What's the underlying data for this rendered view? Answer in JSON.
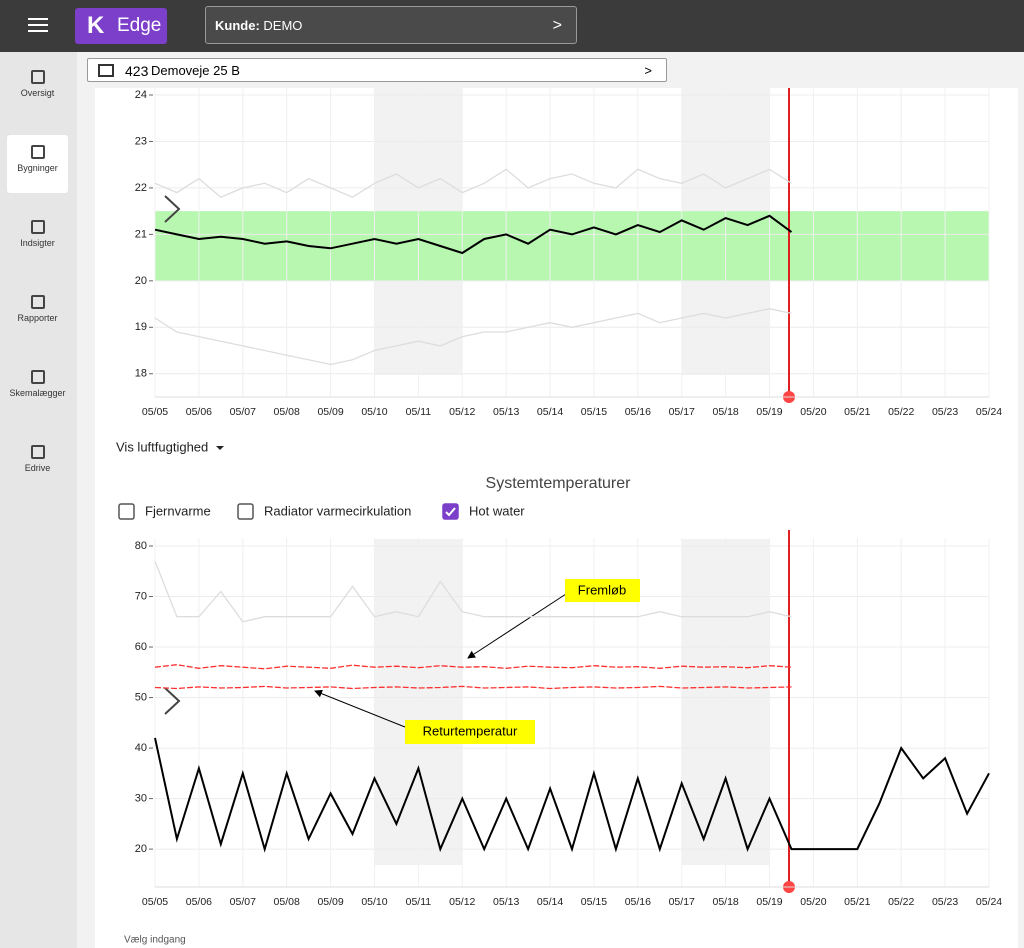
{
  "header": {
    "logo": "Edge",
    "customer_label": "Kunde:",
    "customer": "DEMO"
  },
  "sidebar": [
    "Oversigt",
    "Bygninger",
    "Indsigter",
    "Rapporter",
    "Skemalægger",
    "Edrive"
  ],
  "building": {
    "number": "423",
    "name": "Demoveje 25 B"
  },
  "humidity_toggle": "Vis luftfugtighed",
  "system_title": "Systemtemperaturer",
  "checkboxes": [
    {
      "label": "Fjernvarme",
      "checked": false
    },
    {
      "label": "Radiator varmecirkulation",
      "checked": false
    },
    {
      "label": "Hot water",
      "checked": true
    }
  ],
  "footer": "Vælg indgang",
  "chart_data": [
    {
      "type": "line",
      "categories": [
        "05/05",
        null,
        "05/06",
        null,
        "05/07",
        null,
        "05/08",
        null,
        "05/09",
        null,
        "05/10",
        null,
        "05/11",
        null,
        "05/12",
        null,
        "05/13",
        null,
        "05/14",
        null,
        "05/15",
        null,
        "05/16",
        null,
        "05/17",
        null,
        "05/18",
        null,
        "05/19",
        null,
        "05/20",
        null,
        "05/21",
        null,
        "05/22",
        null,
        "05/23",
        null,
        "05/24"
      ],
      "ylim": [
        17.5,
        24
      ],
      "yticks": [
        18,
        19,
        20,
        21,
        22,
        23,
        24
      ],
      "grid": true,
      "band": {
        "range": [
          20,
          21.5
        ],
        "color": "#b8f7b0"
      },
      "shaded": [
        [
          "05/10",
          "05/12"
        ],
        [
          "05/17",
          "05/19"
        ]
      ],
      "series": [
        {
          "color": "#dddddd",
          "values": [
            22.1,
            21.9,
            22.2,
            21.8,
            22.0,
            22.1,
            21.9,
            22.2,
            22.0,
            21.8,
            22.1,
            22.3,
            22.0,
            22.2,
            21.9,
            22.1,
            22.4,
            22.0,
            22.2,
            22.3,
            22.1,
            22.0,
            22.4,
            22.2,
            22.1,
            22.3,
            22.0,
            22.2,
            22.4,
            22.1,
            null,
            null,
            null,
            null,
            null,
            null,
            null,
            null,
            null
          ]
        },
        {
          "color": "#dddddd",
          "values": [
            19.2,
            18.9,
            18.8,
            18.7,
            18.6,
            18.5,
            18.4,
            18.3,
            18.2,
            18.3,
            18.5,
            18.6,
            18.7,
            18.6,
            18.8,
            18.9,
            18.9,
            19.0,
            19.1,
            19.0,
            19.1,
            19.2,
            19.3,
            19.1,
            19.2,
            19.3,
            19.2,
            19.3,
            19.4,
            19.3,
            null,
            null,
            null,
            null,
            null,
            null,
            null,
            null,
            null
          ]
        },
        {
          "color": "#000000",
          "values": [
            21.1,
            21.0,
            20.9,
            20.95,
            20.9,
            20.8,
            20.85,
            20.75,
            20.7,
            20.8,
            20.9,
            20.8,
            20.9,
            20.75,
            20.6,
            20.9,
            21.0,
            20.8,
            21.1,
            21.0,
            21.15,
            21.0,
            21.2,
            21.05,
            21.3,
            21.1,
            21.35,
            21.2,
            21.4,
            21.05,
            null,
            null,
            null,
            null,
            null,
            null,
            null,
            null,
            null
          ]
        }
      ]
    },
    {
      "type": "line",
      "categories": [
        "05/05",
        null,
        "05/06",
        null,
        "05/07",
        null,
        "05/08",
        null,
        "05/09",
        null,
        "05/10",
        null,
        "05/11",
        null,
        "05/12",
        null,
        "05/13",
        null,
        "05/14",
        null,
        "05/15",
        null,
        "05/16",
        null,
        "05/17",
        null,
        "05/18",
        null,
        "05/19",
        null,
        "05/20",
        null,
        "05/21",
        null,
        "05/22",
        null,
        "05/23",
        null,
        "05/24"
      ],
      "ylim": [
        12.5,
        80
      ],
      "yticks": [
        20,
        30,
        40,
        50,
        60,
        70,
        80
      ],
      "grid": true,
      "shaded": [
        [
          "05/10",
          "05/12"
        ],
        [
          "05/17",
          "05/19"
        ]
      ],
      "annotations": [
        "Fremløb",
        "Returtemperatur"
      ],
      "series": [
        {
          "color": "#dddddd",
          "values": [
            77,
            66,
            66,
            71,
            65,
            66,
            66,
            66,
            66,
            72,
            66,
            67,
            66,
            73,
            67,
            66,
            66,
            66,
            66,
            66,
            66,
            66,
            66,
            67,
            66,
            66,
            66,
            66,
            67,
            66,
            null,
            null,
            null,
            null,
            null,
            null,
            null,
            null,
            null
          ]
        },
        {
          "color": "#ff3030",
          "dash": true,
          "values": [
            56,
            56.5,
            55.8,
            56.3,
            56,
            55.7,
            56.2,
            56,
            55.8,
            56.4,
            56,
            56.2,
            55.9,
            56.3,
            56,
            56.1,
            55.8,
            56.2,
            56,
            55.9,
            56.3,
            56,
            56.1,
            55.8,
            56.2,
            56,
            56.1,
            55.9,
            56.3,
            56,
            null,
            null,
            null,
            null,
            null,
            null,
            null,
            null,
            null
          ]
        },
        {
          "color": "#ff3030",
          "dash": true,
          "values": [
            52,
            51.8,
            52.1,
            51.9,
            52,
            52.2,
            51.9,
            52,
            52.1,
            51.8,
            52,
            52.1,
            51.9,
            52,
            52.2,
            51.9,
            52,
            52.1,
            51.8,
            52,
            52.1,
            51.9,
            52,
            52.2,
            51.9,
            52,
            52.1,
            51.9,
            52,
            52.1,
            null,
            null,
            null,
            null,
            null,
            null,
            null,
            null,
            null
          ]
        },
        {
          "color": "#000000",
          "values": [
            42,
            22,
            36,
            21,
            35,
            20,
            35,
            22,
            31,
            23,
            34,
            25,
            36,
            20,
            30,
            20,
            30,
            20,
            32,
            20,
            35,
            20,
            34,
            20,
            33,
            22,
            34,
            20,
            30,
            20,
            20,
            20,
            20,
            29,
            40,
            34,
            38,
            27,
            35
          ]
        }
      ]
    }
  ]
}
